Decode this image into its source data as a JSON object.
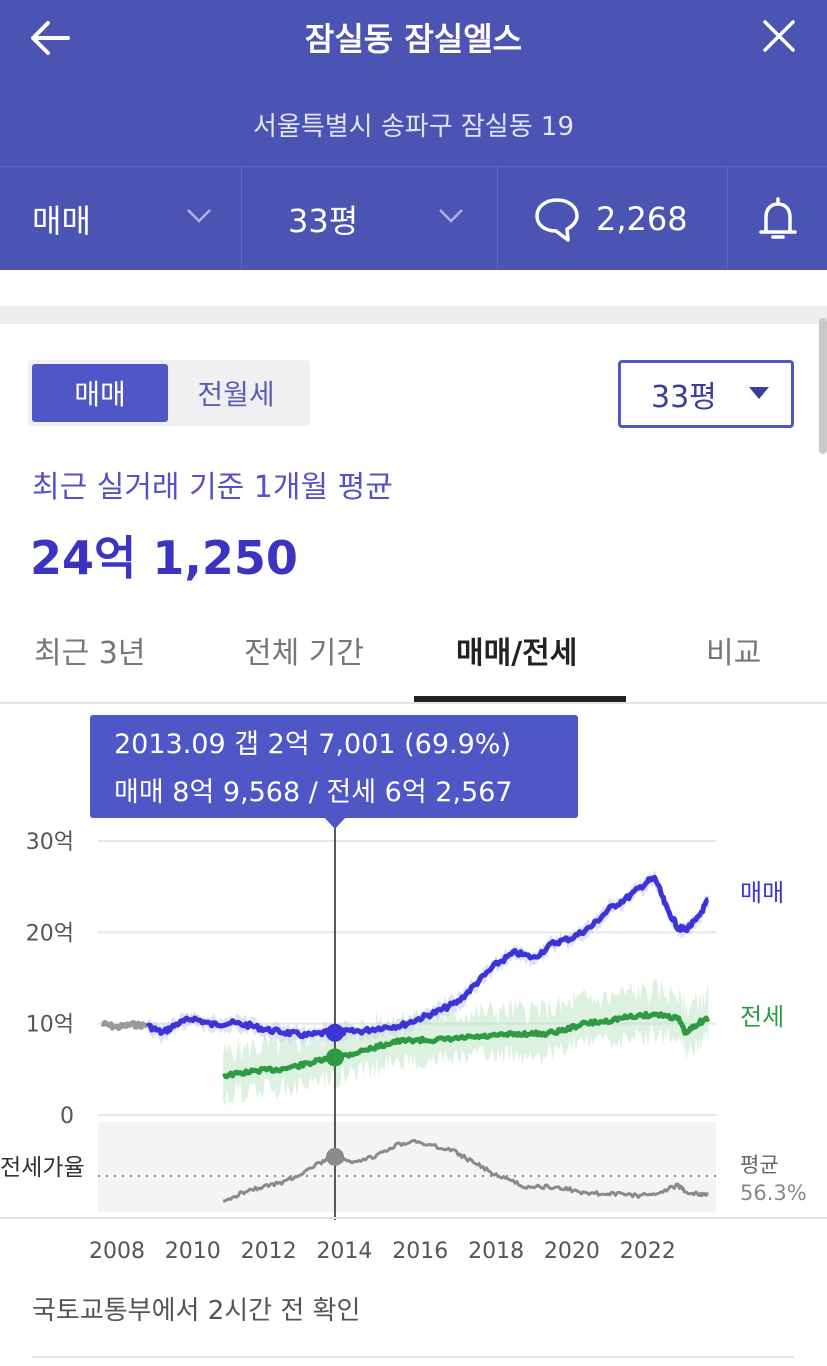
{
  "header": {
    "title": "잠실동 잠실엘스",
    "address": "서울특별시 송파구 잠실동 19",
    "deal_type": "매매",
    "area": "33평",
    "comments_count": "2,268"
  },
  "colors": {
    "header_bg": "#4b53b3",
    "accent": "#4f57c6",
    "sale_line": "#3b34d6",
    "jeonse_line": "#2e9a42",
    "ratio_line": "#8a8a8a"
  },
  "icons": [
    "back-arrow-icon",
    "close-icon",
    "chevron-down-icon",
    "speech-bubble-icon",
    "bell-icon",
    "triangle-down-icon"
  ],
  "segment": {
    "options": [
      "매매",
      "전월세"
    ],
    "selected": "매매"
  },
  "area_select": {
    "value": "33평"
  },
  "summary": {
    "subtitle": "최근 실거래 기준 1개월 평균",
    "price": "24억 1,250"
  },
  "tabs": [
    {
      "label": "최근 3년",
      "active": false
    },
    {
      "label": "전체 기간",
      "active": false
    },
    {
      "label": "매매/전세",
      "active": true
    },
    {
      "label": "비교",
      "active": false
    }
  ],
  "tooltip": {
    "line1": "2013.09  갭 2억 7,001 (69.9%)",
    "line2": "매매 8억 9,568 / 전세 6억 2,567"
  },
  "chart_data": {
    "type": "line",
    "y_unit": "억",
    "y_ticks": [
      "30억",
      "20억",
      "10억",
      "0"
    ],
    "ylim": [
      0,
      30
    ],
    "x_ticks": [
      "2008",
      "2010",
      "2012",
      "2014",
      "2016",
      "2018",
      "2020",
      "2022"
    ],
    "xlim": [
      2007.5,
      2023.8
    ],
    "grid": true,
    "series": [
      {
        "name": "매매",
        "x": [
          2007.6,
          2008.0,
          2008.4,
          2008.8,
          2009.2,
          2009.6,
          2010.0,
          2010.5,
          2011.0,
          2011.5,
          2012.0,
          2012.5,
          2013.0,
          2013.5,
          2013.75,
          2014.0,
          2014.5,
          2015.0,
          2015.5,
          2016.0,
          2016.5,
          2017.0,
          2017.5,
          2018.0,
          2018.5,
          2019.0,
          2019.5,
          2020.0,
          2020.5,
          2021.0,
          2021.5,
          2022.0,
          2022.2,
          2022.5,
          2022.8,
          2023.0,
          2023.3,
          2023.6
        ],
        "values": [
          10.0,
          9.6,
          9.9,
          9.8,
          9.0,
          10.0,
          10.6,
          9.9,
          10.1,
          9.8,
          9.3,
          9.0,
          8.7,
          9.0,
          9.0,
          9.1,
          9.2,
          9.6,
          9.8,
          10.6,
          11.4,
          12.4,
          14.5,
          16.5,
          17.8,
          17.2,
          18.8,
          19.4,
          20.6,
          22.6,
          23.9,
          25.6,
          25.9,
          22.6,
          20.5,
          20.3,
          21.4,
          23.6
        ]
      },
      {
        "name": "전세",
        "x": [
          2010.8,
          2011.3,
          2011.8,
          2012.3,
          2012.8,
          2013.3,
          2013.75,
          2014.2,
          2014.8,
          2015.3,
          2015.8,
          2016.3,
          2016.8,
          2017.3,
          2017.8,
          2018.3,
          2018.8,
          2019.3,
          2019.8,
          2020.3,
          2020.8,
          2021.3,
          2021.8,
          2022.3,
          2022.8,
          2023.0,
          2023.3,
          2023.6
        ],
        "values": [
          4.3,
          4.6,
          4.9,
          5.0,
          5.4,
          5.9,
          6.3,
          6.7,
          7.4,
          8.0,
          8.2,
          8.2,
          8.3,
          8.5,
          8.6,
          8.8,
          8.9,
          8.9,
          9.3,
          10.0,
          10.2,
          10.6,
          10.9,
          11.0,
          10.6,
          8.9,
          10.0,
          10.6
        ]
      }
    ],
    "series_labels": [
      "매매",
      "전세"
    ],
    "ratio": {
      "label": "전세가율",
      "avg_label": "평균",
      "avg_value": "56.3%",
      "x": [
        2010.8,
        2011.3,
        2011.8,
        2012.3,
        2012.8,
        2013.3,
        2013.75,
        2014.2,
        2014.8,
        2015.3,
        2015.8,
        2016.3,
        2016.8,
        2017.3,
        2017.8,
        2018.3,
        2018.8,
        2019.3,
        2019.8,
        2020.3,
        2020.8,
        2021.3,
        2021.8,
        2022.3,
        2022.8,
        2023.0,
        2023.3,
        2023.6
      ],
      "values": [
        44,
        50,
        53,
        55,
        60,
        66,
        69.9,
        66,
        70,
        76,
        79,
        76,
        74,
        68,
        62,
        57,
        53,
        53,
        52,
        50,
        49,
        49,
        48,
        50,
        54,
        50,
        49,
        49
      ]
    },
    "highlight": {
      "x": 2013.75
    }
  },
  "footer": {
    "source": "국토교통부에서 2시간 전 확인"
  }
}
